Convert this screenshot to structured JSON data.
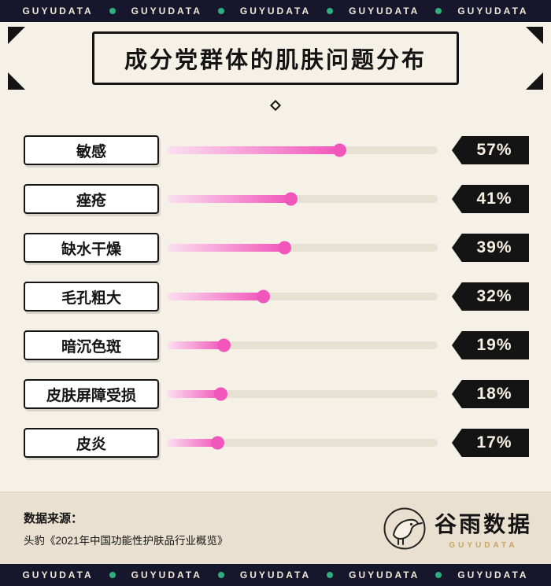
{
  "banner": {
    "text": "GUYUDATA"
  },
  "title": "成分党群体的肌肤问题分布",
  "chart_data": {
    "type": "bar",
    "style": "horizontal-lollipop",
    "title": "成分党群体的肌肤问题分布",
    "categories": [
      "敏感",
      "痤疮",
      "缺水干燥",
      "毛孔粗大",
      "暗沉色斑",
      "皮肤屏障受损",
      "皮炎"
    ],
    "values": [
      57,
      41,
      39,
      32,
      19,
      18,
      17
    ],
    "value_labels": [
      "57%",
      "41%",
      "39%",
      "32%",
      "19%",
      "18%",
      "17%"
    ],
    "xlim": [
      0,
      100
    ],
    "legend": "none",
    "grid": "off"
  },
  "footer": {
    "source_label": "数据来源：",
    "source_text": "头豹《2021年中国功能性护肤品行业概览》",
    "logo_text": "谷雨数据",
    "logo_subtext": "GUYUDATA"
  },
  "colors": {
    "navy": "#16162d",
    "cream": "#f6f1e6",
    "pink": "#f156bb",
    "green": "#2fae7e",
    "tag-black": "#141414",
    "footer-bg": "#e9e0cf"
  }
}
